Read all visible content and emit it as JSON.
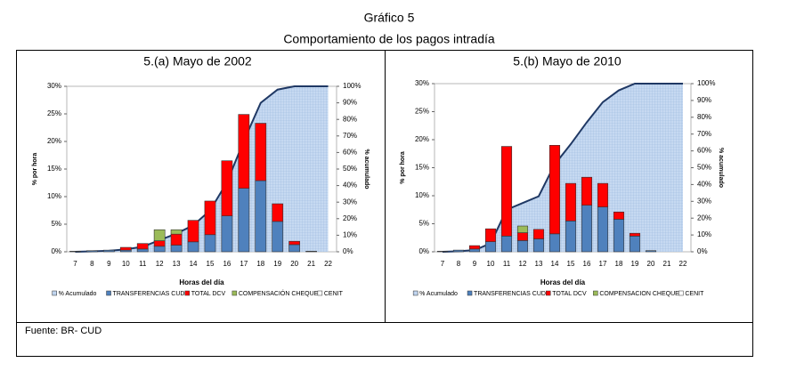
{
  "header": {
    "title": "Gráfico 5",
    "subtitle": "Comportamiento de los pagos intradía"
  },
  "footer": {
    "source": "Fuente: BR- CUD"
  },
  "chart_data": [
    {
      "type": "bar",
      "stacked": true,
      "title": "5.(a) Mayo de 2002",
      "xlabel": "Horas del día",
      "ylabel": "% por hora",
      "y2label": "% acumulado",
      "categories": [
        "7",
        "8",
        "9",
        "10",
        "11",
        "12",
        "13",
        "14",
        "15",
        "16",
        "17",
        "18",
        "19",
        "20",
        "21",
        "22"
      ],
      "ylim": [
        0,
        30
      ],
      "yticks": [
        {
          "value": 0,
          "label": "0%"
        },
        {
          "value": 5,
          "label": "5%"
        },
        {
          "value": 10,
          "label": "10%"
        },
        {
          "value": 15,
          "label": "15%"
        },
        {
          "value": 20,
          "label": "20%"
        },
        {
          "value": 25,
          "label": "25%"
        },
        {
          "value": 30,
          "label": "30%"
        }
      ],
      "y2lim": [
        0,
        100
      ],
      "y2ticks": [
        {
          "value": 0,
          "label": "0%"
        },
        {
          "value": 10,
          "label": "10%"
        },
        {
          "value": 20,
          "label": "20%"
        },
        {
          "value": 30,
          "label": "30%"
        },
        {
          "value": 40,
          "label": "40%"
        },
        {
          "value": 50,
          "label": "50%"
        },
        {
          "value": 60,
          "label": "60%"
        },
        {
          "value": 70,
          "label": "70%"
        },
        {
          "value": 80,
          "label": "80%"
        },
        {
          "value": 90,
          "label": "90%"
        },
        {
          "value": 100,
          "label": "100%"
        }
      ],
      "series": [
        {
          "name": "% Acumulado",
          "color": "#c6d9f1",
          "axis": "y2",
          "kind": "area",
          "values": [
            0,
            0.3,
            0.6,
            1.5,
            3,
            7,
            11,
            16,
            25,
            42,
            67,
            90,
            98,
            100,
            100,
            100
          ]
        },
        {
          "name": "TRANSFERENCIAS CUD",
          "color": "#4f81bd",
          "values": [
            0.1,
            0.2,
            0.3,
            0.3,
            0.5,
            1.0,
            1.2,
            1.8,
            3.1,
            6.5,
            11.5,
            12.9,
            5.5,
            1.3,
            0.1,
            0
          ]
        },
        {
          "name": "TOTAL DCV",
          "color": "#ff0000",
          "values": [
            0,
            0,
            0,
            0.5,
            1.0,
            1.0,
            2.0,
            3.9,
            6.1,
            10,
            13.4,
            10.4,
            3.2,
            0.6,
            0,
            0
          ]
        },
        {
          "name": "COMPENSACIÓN CHEQUES",
          "color": "#9bbb59",
          "values": [
            0,
            0,
            0,
            0,
            0,
            2.0,
            0.8,
            0,
            0,
            0,
            0,
            0,
            0,
            0,
            0,
            0
          ]
        },
        {
          "name": "CENIT",
          "color": "#ffffff",
          "values": [
            0,
            0,
            0,
            0,
            0,
            0,
            0,
            0,
            0,
            0,
            0,
            0,
            0,
            0,
            0,
            0
          ]
        }
      ]
    },
    {
      "type": "bar",
      "stacked": true,
      "title": "5.(b) Mayo de 2010",
      "xlabel": "Horas del día",
      "ylabel": "% por hora",
      "y2label": "% acumulado",
      "categories": [
        "7",
        "8",
        "9",
        "10",
        "11",
        "12",
        "13",
        "14",
        "15",
        "16",
        "17",
        "18",
        "19",
        "20",
        "21",
        "22"
      ],
      "ylim": [
        0,
        30
      ],
      "yticks": [
        {
          "value": 0,
          "label": "0%"
        },
        {
          "value": 5,
          "label": "5%"
        },
        {
          "value": 10,
          "label": "10%"
        },
        {
          "value": 15,
          "label": "15%"
        },
        {
          "value": 20,
          "label": "20%"
        },
        {
          "value": 25,
          "label": "25%"
        },
        {
          "value": 30,
          "label": "30%"
        }
      ],
      "y2lim": [
        0,
        100
      ],
      "y2ticks": [
        {
          "value": 0,
          "label": "0%"
        },
        {
          "value": 10,
          "label": "10%"
        },
        {
          "value": 20,
          "label": "20%"
        },
        {
          "value": 30,
          "label": "30%"
        },
        {
          "value": 40,
          "label": "40%"
        },
        {
          "value": 50,
          "label": "50%"
        },
        {
          "value": 60,
          "label": "60%"
        },
        {
          "value": 70,
          "label": "70%"
        },
        {
          "value": 80,
          "label": "80%"
        },
        {
          "value": 90,
          "label": "90%"
        },
        {
          "value": 100,
          "label": "100%"
        }
      ],
      "series": [
        {
          "name": "% Acumulado",
          "color": "#c6d9f1",
          "axis": "y2",
          "kind": "area",
          "values": [
            0,
            0.3,
            1,
            5,
            25,
            29,
            33,
            52,
            64,
            77,
            89,
            96,
            100,
            100,
            100,
            100
          ]
        },
        {
          "name": "TRANSFERENCIAS CUD",
          "color": "#4f81bd",
          "values": [
            0.1,
            0.3,
            0.5,
            1.8,
            2.8,
            2.0,
            2.3,
            3.2,
            5.5,
            8.3,
            8.0,
            5.8,
            2.8,
            0.2,
            0,
            0
          ]
        },
        {
          "name": "TOTAL DCV",
          "color": "#ff0000",
          "values": [
            0,
            0,
            0.6,
            2.3,
            16,
            1.4,
            1.7,
            15.8,
            6.7,
            5.0,
            4.2,
            1.3,
            0.5,
            0,
            0,
            0
          ]
        },
        {
          "name": "COMPENSACION CHEQUES",
          "color": "#9bbb59",
          "values": [
            0,
            0,
            0,
            0,
            0,
            1.2,
            0,
            0,
            0,
            0,
            0,
            0,
            0,
            0,
            0,
            0
          ]
        },
        {
          "name": "CENIT",
          "color": "#ffffff",
          "values": [
            0,
            0,
            0,
            0,
            0,
            0,
            0,
            0,
            0,
            0,
            0,
            0,
            0,
            0,
            0,
            0
          ]
        }
      ]
    }
  ]
}
